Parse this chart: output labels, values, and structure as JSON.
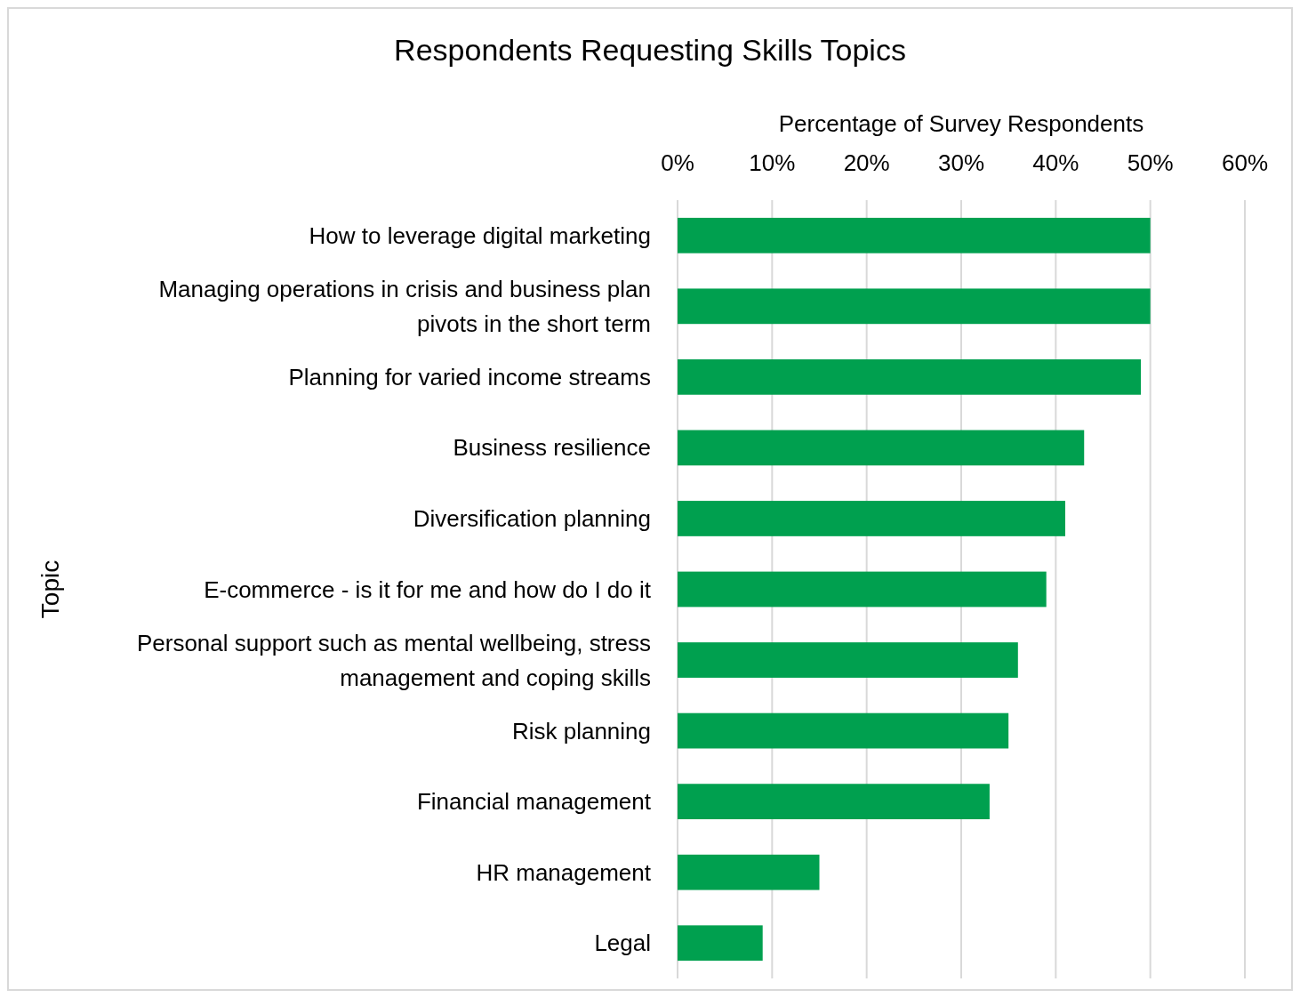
{
  "chart_data": {
    "type": "bar",
    "orientation": "horizontal",
    "title": "Respondents Requesting Skills Topics",
    "xlabel": "Percentage of Survey Respondents",
    "ylabel": "Topic",
    "categories": [
      "How to leverage digital marketing",
      "Managing operations in crisis and business plan pivots in the short term",
      "Planning for varied income streams",
      "Business resilience",
      "Diversification planning",
      "E-commerce - is it for me and how do I do it",
      "Personal support such as mental wellbeing, stress management and coping skills",
      "Risk planning",
      "Financial management",
      "HR management",
      "Legal"
    ],
    "values": [
      50,
      50,
      49,
      43,
      41,
      39,
      36,
      35,
      33,
      15,
      9
    ],
    "color": "#00a04f",
    "xlim": [
      0,
      60
    ],
    "xticks": [
      {
        "value": 0,
        "label": "0%"
      },
      {
        "value": 10,
        "label": "10%"
      },
      {
        "value": 20,
        "label": "20%"
      },
      {
        "value": 30,
        "label": "30%"
      },
      {
        "value": 40,
        "label": "40%"
      },
      {
        "value": 50,
        "label": "50%"
      },
      {
        "value": 60,
        "label": "60%"
      }
    ],
    "grid": "x"
  }
}
